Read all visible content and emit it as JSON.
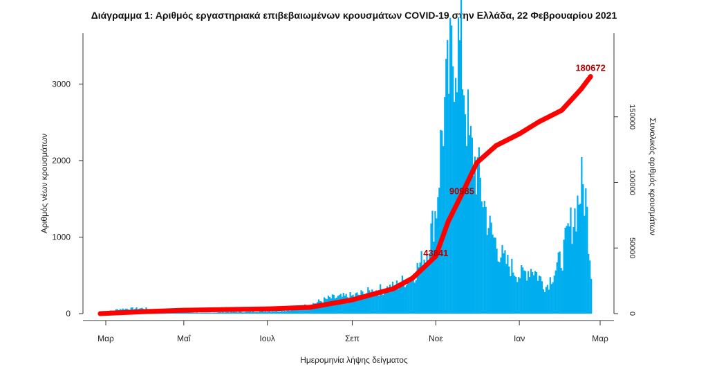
{
  "title": "Διάγραμμα 1: Αριθμός εργαστηριακά επιβεβαιωμένων κρουσμάτων COVID-19 στην Ελλάδα, 22 Φεβρουαρίου 2021",
  "colors": {
    "bars": "#00aeef",
    "cumulative": "#ff0000",
    "axis": "#333333",
    "label": "#b30000"
  },
  "chart_data": {
    "type": "bar",
    "title": "Διάγραμμα 1: Αριθμός εργαστηριακά επιβεβαιωμένων κρουσμάτων COVID-19 στην Ελλάδα, 22 Φεβρουαρίου 2021",
    "xlabel": "Ημερομηνία λήψης δείγματος",
    "ylabel": "Αριθμός νέων κρουσμάτων",
    "y2label": "Συνολικός αριθμός κρουσμάτων",
    "ylim": [
      0,
      3600
    ],
    "y2lim": [
      0,
      180672
    ],
    "yticks": [
      0,
      1000,
      2000,
      3000
    ],
    "y2ticks": [
      0,
      50000,
      100000,
      150000
    ],
    "xticks": [
      "Μαρ",
      "Μαΐ",
      "Ιουλ",
      "Σεπ",
      "Νοε",
      "Ιαν",
      "Μαρ"
    ],
    "daily_series": {
      "name": "Νέα κρούσματα",
      "x": [
        "2020-03-01",
        "2020-03-15",
        "2020-04-01",
        "2020-04-15",
        "2020-05-01",
        "2020-05-15",
        "2020-06-01",
        "2020-06-15",
        "2020-07-01",
        "2020-07-15",
        "2020-08-01",
        "2020-08-15",
        "2020-09-01",
        "2020-09-15",
        "2020-10-01",
        "2020-10-15",
        "2020-10-25",
        "2020-11-01",
        "2020-11-05",
        "2020-11-10",
        "2020-11-15",
        "2020-11-20",
        "2020-11-25",
        "2020-12-01",
        "2020-12-10",
        "2020-12-20",
        "2021-01-01",
        "2021-01-10",
        "2021-01-20",
        "2021-02-01",
        "2021-02-05",
        "2021-02-10",
        "2021-02-15",
        "2021-02-18",
        "2021-02-22"
      ],
      "values": [
        10,
        60,
        70,
        40,
        15,
        10,
        20,
        20,
        30,
        40,
        120,
        200,
        230,
        290,
        350,
        500,
        800,
        1400,
        2400,
        3050,
        3600,
        3300,
        2200,
        1850,
        1100,
        700,
        500,
        600,
        350,
        750,
        1050,
        1300,
        1670,
        1500,
        560
      ]
    },
    "cumulative_series": {
      "name": "Συνολικός αριθμός κρουσμάτων",
      "x": [
        "2020-03-01",
        "2020-04-01",
        "2020-05-01",
        "2020-06-01",
        "2020-07-01",
        "2020-08-01",
        "2020-09-01",
        "2020-10-01",
        "2020-10-15",
        "2020-11-01",
        "2020-11-10",
        "2020-11-20",
        "2020-12-01",
        "2020-12-15",
        "2021-01-01",
        "2021-01-15",
        "2021-02-01",
        "2021-02-15",
        "2021-02-22"
      ],
      "values": [
        0,
        1500,
        2600,
        3100,
        3600,
        4800,
        10500,
        19000,
        27000,
        43841,
        70000,
        90985,
        115000,
        128000,
        137000,
        146000,
        155000,
        171000,
        180672
      ]
    },
    "annotations": [
      {
        "label": "43841",
        "x": "2020-11-01",
        "value": 43841
      },
      {
        "label": "90985",
        "x": "2020-11-20",
        "value": 90985
      },
      {
        "label": "180672",
        "x": "2021-02-22",
        "value": 180672
      }
    ]
  }
}
